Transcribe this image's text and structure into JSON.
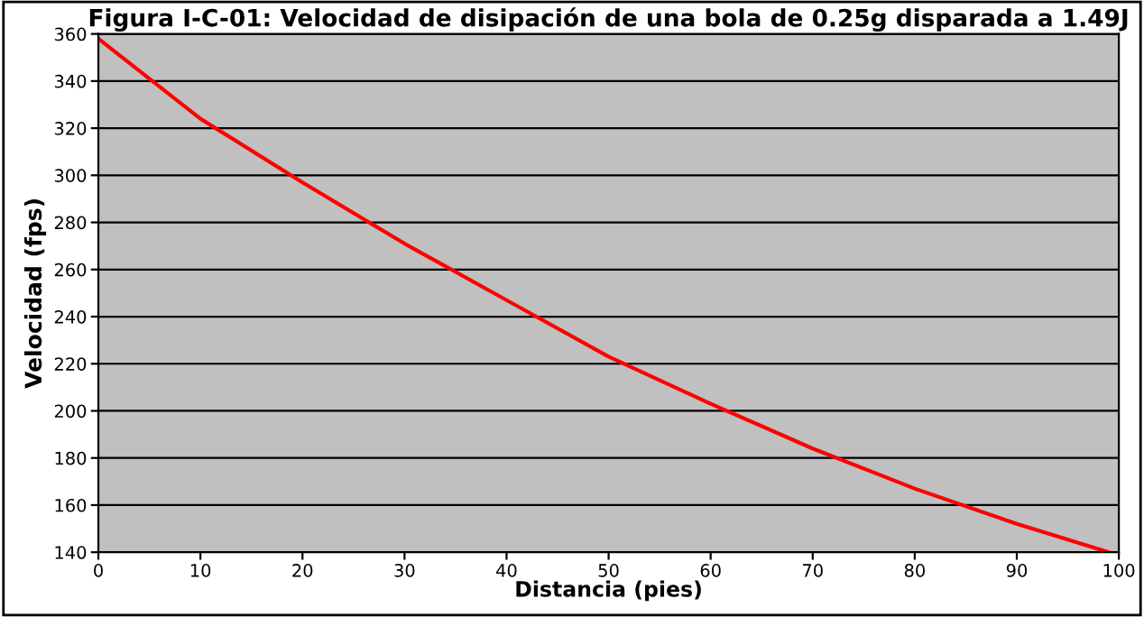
{
  "chart_data": {
    "type": "line",
    "title": "Figura I-C-01: Velocidad de disipación de una bola de 0.25g disparada a 1.49J",
    "xlabel": "Distancia (pies)",
    "ylabel": "Velocidad (fps)",
    "series": [
      {
        "color": "#ff0000",
        "x": [
          0,
          10,
          20,
          30,
          40,
          50,
          60,
          70,
          80,
          90,
          99
        ],
        "values": [
          358,
          324,
          297,
          271,
          247,
          223,
          203,
          184,
          167,
          152,
          140
        ]
      }
    ],
    "xlim": [
      0,
      100
    ],
    "xticks": [
      0,
      10,
      20,
      30,
      40,
      50,
      60,
      70,
      80,
      90,
      100
    ],
    "ylim": [
      140,
      360
    ],
    "yticks": [
      140,
      160,
      180,
      200,
      220,
      240,
      260,
      280,
      300,
      320,
      340,
      360
    ],
    "grid": "y",
    "legend": false,
    "marker": "none",
    "line_style": "solid"
  }
}
